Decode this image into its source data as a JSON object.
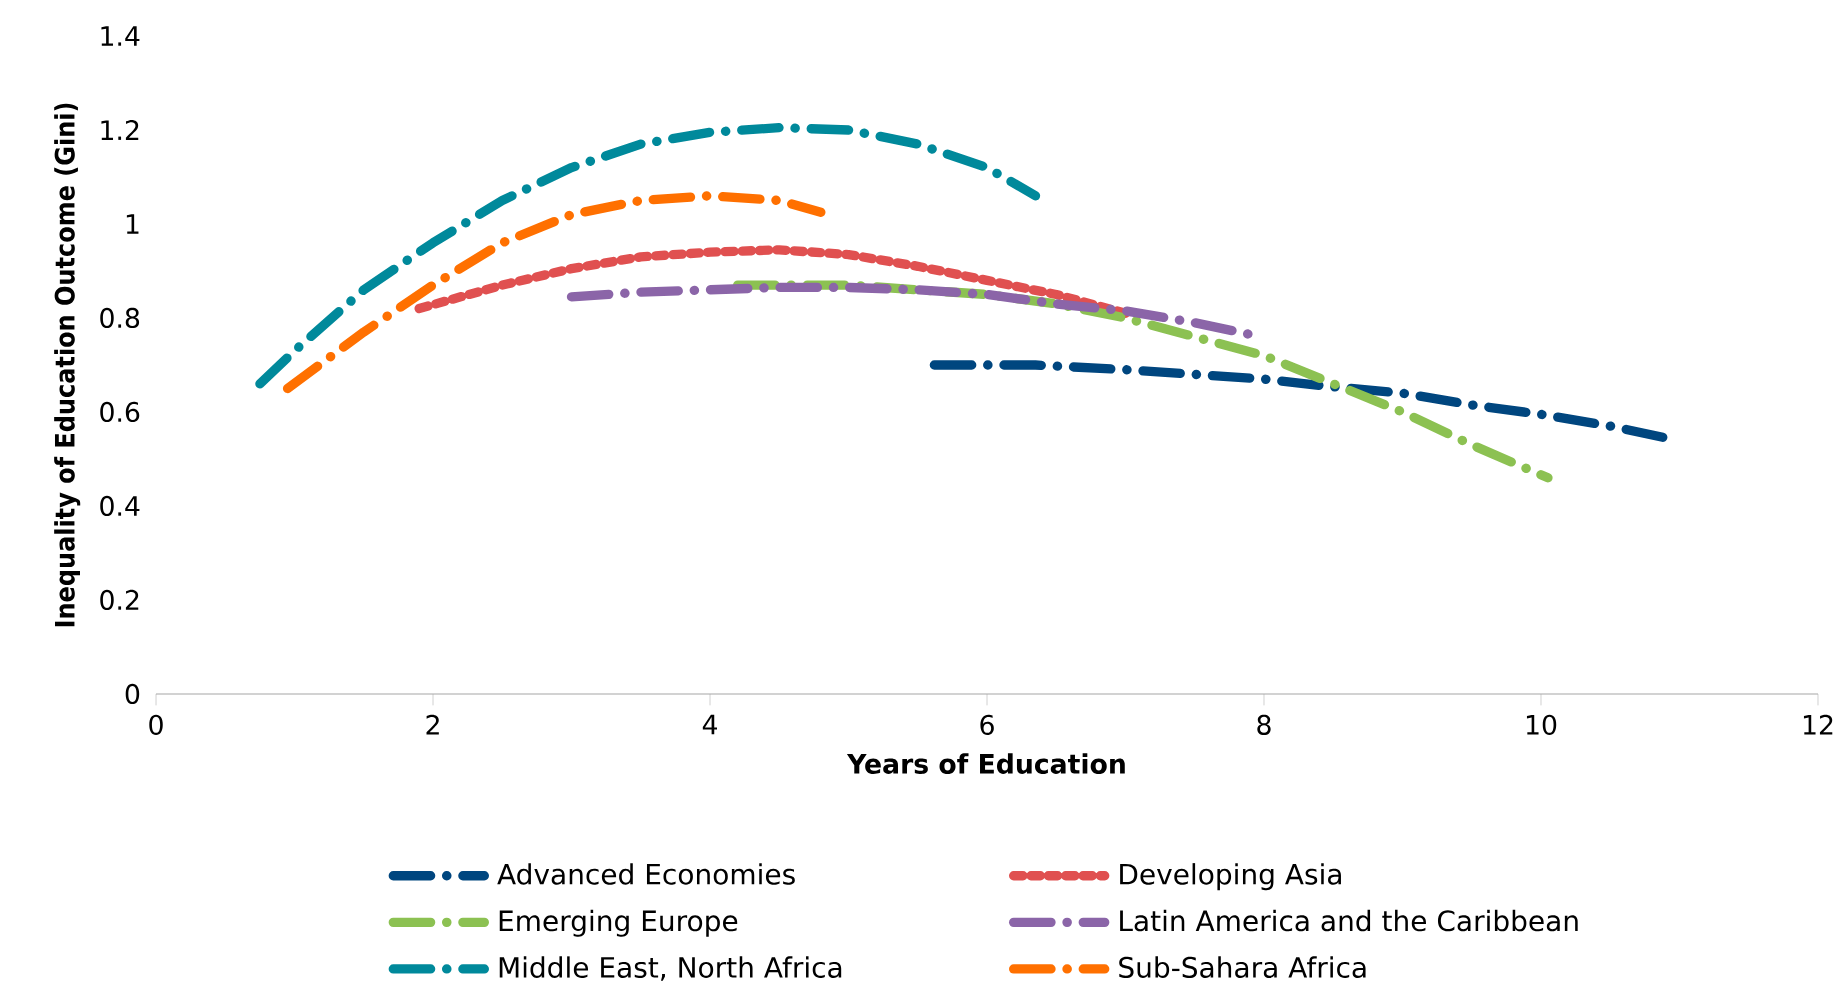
{
  "chart_data": {
    "type": "line",
    "xlabel": "Years of Education",
    "ylabel": "Inequality of Education Outcome (Gini)",
    "xlim": [
      0,
      12
    ],
    "ylim": [
      0,
      1.4
    ],
    "xticks": [
      0,
      2,
      4,
      6,
      8,
      10,
      12
    ],
    "yticks": [
      0,
      0.2,
      0.4,
      0.6,
      0.8,
      1,
      1.2,
      1.4
    ],
    "legend": "bottom",
    "grid": false,
    "marker": "none",
    "series": [
      {
        "name": "Advanced Economies",
        "color": "#00467f",
        "line_style": "dashed",
        "x": [
          5.62,
          6.35,
          7.0,
          7.5,
          8.0,
          8.45,
          9.0,
          9.5,
          10.0,
          10.5,
          10.9
        ],
        "values": [
          0.7,
          0.7,
          0.69,
          0.68,
          0.67,
          0.655,
          0.64,
          0.615,
          0.595,
          0.57,
          0.545
        ]
      },
      {
        "name": "Developing Asia",
        "color": "#e05050",
        "line_style": "dotted",
        "x": [
          1.9,
          2.5,
          3,
          3.5,
          4,
          4.5,
          5,
          5.5,
          6,
          6.5,
          7.0
        ],
        "values": [
          0.82,
          0.87,
          0.905,
          0.93,
          0.94,
          0.945,
          0.935,
          0.91,
          0.88,
          0.85,
          0.81
        ]
      },
      {
        "name": "Emerging Europe",
        "color": "#8cc152",
        "line_style": "dashed",
        "x": [
          4.2,
          5,
          5.5,
          6,
          6.5,
          7,
          7.5,
          8,
          8.5,
          9,
          9.5,
          10.05
        ],
        "values": [
          0.87,
          0.87,
          0.86,
          0.85,
          0.83,
          0.8,
          0.76,
          0.72,
          0.66,
          0.6,
          0.53,
          0.46
        ]
      },
      {
        "name": "Latin America and the Caribbean",
        "color": "#8b65a8",
        "line_style": "dashed",
        "x": [
          3.0,
          3.5,
          4,
          4.5,
          5,
          5.5,
          6,
          6.5,
          7,
          7.5,
          7.9
        ],
        "values": [
          0.845,
          0.855,
          0.86,
          0.865,
          0.865,
          0.86,
          0.85,
          0.83,
          0.815,
          0.79,
          0.765
        ]
      },
      {
        "name": "Middle East, North Africa",
        "color": "#00899b",
        "line_style": "dashed",
        "x": [
          0.75,
          1,
          1.5,
          2,
          2.5,
          3,
          3.5,
          4,
          4.5,
          5,
          5.5,
          6,
          6.35
        ],
        "values": [
          0.66,
          0.73,
          0.86,
          0.96,
          1.05,
          1.12,
          1.17,
          1.195,
          1.205,
          1.2,
          1.17,
          1.12,
          1.06
        ]
      },
      {
        "name": "Sub-Sahara Africa",
        "color": "#ff7000",
        "line_style": "dashed",
        "x": [
          0.95,
          1.5,
          2,
          2.5,
          3,
          3.5,
          4,
          4.5,
          4.8
        ],
        "values": [
          0.65,
          0.77,
          0.87,
          0.96,
          1.02,
          1.05,
          1.06,
          1.05,
          1.025
        ]
      }
    ]
  }
}
